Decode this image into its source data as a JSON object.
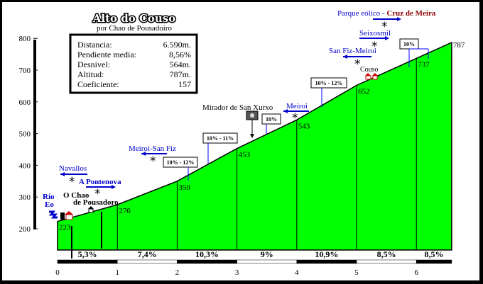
{
  "chart_data": {
    "type": "area",
    "title": "Alto do Couso",
    "subtitle": "por Chao de Pousadoiro",
    "stats": [
      {
        "label": "Distancia:",
        "value": "6.590m."
      },
      {
        "label": "Pendiente media:",
        "value": "8,56%"
      },
      {
        "label": "Desnivel:",
        "value": "564m."
      },
      {
        "label": "Altitud:",
        "value": "787m."
      },
      {
        "label": "Coeficiente:",
        "value": "157"
      }
    ],
    "y_ticks": [
      "200",
      "300",
      "400",
      "500",
      "600",
      "700",
      "800"
    ],
    "x_ticks": [
      "0",
      "1",
      "2",
      "3",
      "4",
      "5",
      "6"
    ],
    "ylim": [
      200,
      800
    ],
    "xlim": [
      0,
      6.59
    ],
    "profile": [
      {
        "x": 0,
        "y": 223
      },
      {
        "x": 1,
        "y": 276
      },
      {
        "x": 2,
        "y": 350
      },
      {
        "x": 3,
        "y": 453
      },
      {
        "x": 4,
        "y": 543
      },
      {
        "x": 5,
        "y": 652
      },
      {
        "x": 6,
        "y": 737
      },
      {
        "x": 6.59,
        "y": 787
      }
    ],
    "point_labels": [
      "223",
      "276",
      "350",
      "453",
      "543",
      "652",
      "737",
      "787"
    ],
    "segments": [
      {
        "from": 0,
        "to": 1,
        "grade": "5,3%"
      },
      {
        "from": 1,
        "to": 2,
        "grade": "7,4%"
      },
      {
        "from": 2,
        "to": 3,
        "grade": "10,3%"
      },
      {
        "from": 3,
        "to": 4,
        "grade": "9%"
      },
      {
        "from": 4,
        "to": 5,
        "grade": "10,9%"
      },
      {
        "from": 5,
        "to": 6,
        "grade": "8,5%"
      },
      {
        "from": 6,
        "to": 6.59,
        "grade": "8,5%"
      }
    ],
    "grade_boxes": [
      "10% - 12%",
      "10% - 11%",
      "10%",
      "10% - 12%",
      "10%"
    ],
    "places": {
      "rio_line1": "Río",
      "rio_line2": "Eo",
      "navallos": "Navallos",
      "a_pontenova": "A Pontenova",
      "chao_line1": "O Chao",
      "chao_line2": "de Pousadoro",
      "meiroi_sanfiz": "Meiroi-San Fiz",
      "mirador": "Mirador de San Xurxo",
      "meiroi": "Meiroi",
      "sanfiz_meiroi": "San Fiz-Meiroi",
      "couso": "Couso",
      "seixosmil": "Seixosmil",
      "parque": "Parque eólico - ",
      "cruz": "Cruz de Meira"
    },
    "colors": {
      "fill": "#00ff00",
      "link": "#0000cc",
      "summit": "#8b0000",
      "frame": "#000000"
    }
  }
}
